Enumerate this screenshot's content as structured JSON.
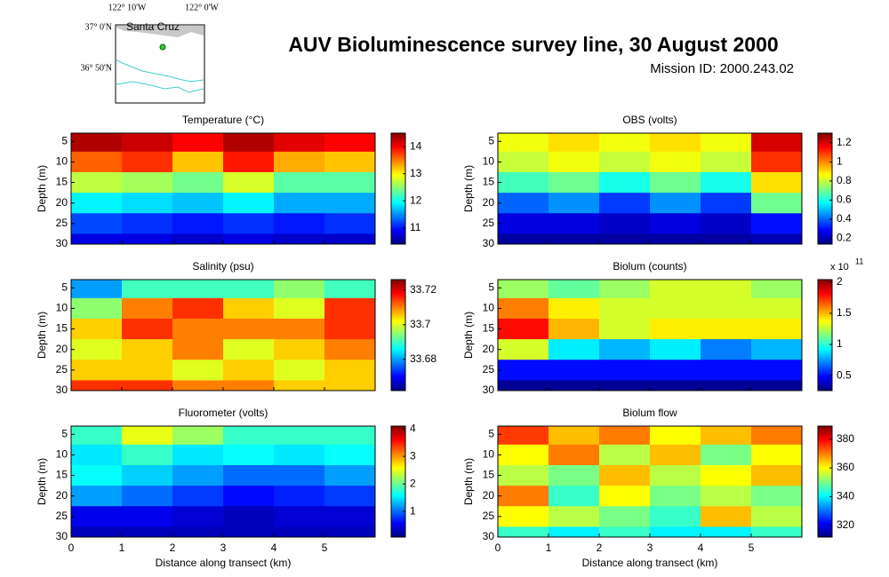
{
  "header": {
    "title": "AUV Bioluminescence survey line, 30 August 2000",
    "subtitle": "Mission ID: 2000.243.02"
  },
  "map": {
    "lon_labels": [
      "122° 10'W",
      "122° 0'W"
    ],
    "lat_labels": [
      "37° 0'N",
      "36° 50'N"
    ],
    "place": "Santa Cruz"
  },
  "chart_data": [
    {
      "type": "heatmap",
      "title": "Temperature (°C)",
      "ylabel": "Depth (m)",
      "x": [
        0.5,
        1.5,
        2.5,
        3.5,
        4.5,
        5.5
      ],
      "depths": [
        5,
        10,
        15,
        20,
        25,
        30
      ],
      "values": [
        [
          14.3,
          14.2,
          14.0,
          14.3,
          14.1,
          14.0
        ],
        [
          13.6,
          13.8,
          13.2,
          13.9,
          13.3,
          13.2
        ],
        [
          12.7,
          12.6,
          12.4,
          12.8,
          12.3,
          12.3
        ],
        [
          11.9,
          11.8,
          11.7,
          11.9,
          11.6,
          11.6
        ],
        [
          11.2,
          11.1,
          11.0,
          11.1,
          11.0,
          11.1
        ],
        [
          10.8,
          10.8,
          10.7,
          10.8,
          10.7,
          10.7
        ]
      ],
      "xlim": [
        0,
        6
      ],
      "xticks": [
        0,
        1,
        2,
        3,
        4,
        5
      ],
      "ylim": [
        3,
        30
      ],
      "yticks": [
        5,
        10,
        15,
        20,
        25,
        30
      ],
      "clim": [
        10.4,
        14.5
      ],
      "cticks": [
        11,
        12,
        13,
        14
      ],
      "colormap": "jet"
    },
    {
      "type": "heatmap",
      "title": "OBS (volts)",
      "ylabel": "Depth (m)",
      "x": [
        0.5,
        1.5,
        2.5,
        3.5,
        4.5,
        5.5
      ],
      "depths": [
        5,
        10,
        15,
        20,
        25,
        30
      ],
      "values": [
        [
          0.85,
          0.9,
          0.85,
          0.9,
          0.85,
          1.2
        ],
        [
          0.8,
          0.85,
          0.8,
          0.85,
          0.8,
          1.1
        ],
        [
          0.65,
          0.7,
          0.6,
          0.7,
          0.6,
          0.9
        ],
        [
          0.4,
          0.45,
          0.35,
          0.45,
          0.35,
          0.7
        ],
        [
          0.25,
          0.25,
          0.22,
          0.25,
          0.22,
          0.3
        ],
        [
          0.18,
          0.18,
          0.18,
          0.18,
          0.18,
          0.2
        ]
      ],
      "xlim": [
        0,
        6
      ],
      "xticks": [
        0,
        1,
        2,
        3,
        4,
        5
      ],
      "ylim": [
        3,
        30
      ],
      "yticks": [
        5,
        10,
        15,
        20,
        25,
        30
      ],
      "clim": [
        0.14,
        1.3
      ],
      "cticks": [
        0.2,
        0.4,
        0.6,
        0.8,
        1,
        1.2
      ],
      "colormap": "jet"
    },
    {
      "type": "heatmap",
      "title": "Salinity (psu)",
      "ylabel": "Depth (m)",
      "x": [
        0.5,
        1.5,
        2.5,
        3.5,
        4.5,
        5.5
      ],
      "depths": [
        5,
        10,
        15,
        20,
        25,
        30
      ],
      "values": [
        [
          33.68,
          33.69,
          33.69,
          33.69,
          33.695,
          33.69
        ],
        [
          33.695,
          33.71,
          33.715,
          33.705,
          33.7,
          33.715
        ],
        [
          33.705,
          33.715,
          33.71,
          33.71,
          33.71,
          33.715
        ],
        [
          33.7,
          33.705,
          33.71,
          33.7,
          33.705,
          33.71
        ],
        [
          33.705,
          33.705,
          33.7,
          33.705,
          33.7,
          33.705
        ],
        [
          33.715,
          33.715,
          33.71,
          33.71,
          33.705,
          33.705
        ]
      ],
      "xlim": [
        0,
        6
      ],
      "xticks": [
        0,
        1,
        2,
        3,
        4,
        5
      ],
      "ylim": [
        3,
        30
      ],
      "yticks": [
        5,
        10,
        15,
        20,
        25,
        30
      ],
      "clim": [
        33.662,
        33.726
      ],
      "cticks": [
        33.68,
        33.7,
        33.72
      ],
      "colormap": "jet"
    },
    {
      "type": "heatmap",
      "title": "Biolum (counts)",
      "ylabel": "Depth (m)",
      "x": [
        0.5,
        1.5,
        2.5,
        3.5,
        4.5,
        5.5
      ],
      "depths": [
        5,
        10,
        15,
        20,
        25,
        30
      ],
      "values": [
        [
          1.2,
          1.1,
          1.2,
          1.3,
          1.3,
          1.2
        ],
        [
          1.6,
          1.4,
          1.3,
          1.3,
          1.3,
          1.3
        ],
        [
          1.8,
          1.5,
          1.3,
          1.4,
          1.4,
          1.4
        ],
        [
          1.3,
          0.9,
          0.8,
          0.9,
          0.7,
          0.8
        ],
        [
          0.5,
          0.5,
          0.5,
          0.5,
          0.5,
          0.5
        ],
        [
          0.3,
          0.3,
          0.3,
          0.3,
          0.3,
          0.3
        ]
      ],
      "xlim": [
        0,
        6
      ],
      "xticks": [
        0,
        1,
        2,
        3,
        4,
        5
      ],
      "ylim": [
        3,
        30
      ],
      "yticks": [
        5,
        10,
        15,
        20,
        25,
        30
      ],
      "clim": [
        0.26,
        2.04
      ],
      "cticks": [
        0.5,
        1,
        1.5,
        2
      ],
      "colormap": "jet",
      "cbar_multiplier": "x 10",
      "cbar_exponent": "11"
    },
    {
      "type": "heatmap",
      "title": "Fluorometer (volts)",
      "ylabel": "Depth (m)",
      "xlabel": "Distance along transect (km)",
      "x": [
        0.5,
        1.5,
        2.5,
        3.5,
        4.5,
        5.5
      ],
      "depths": [
        5,
        10,
        15,
        20,
        25,
        30
      ],
      "values": [
        [
          1.8,
          2.5,
          2.2,
          1.8,
          1.8,
          1.8
        ],
        [
          1.5,
          1.8,
          1.5,
          1.6,
          1.5,
          1.6
        ],
        [
          1.6,
          1.4,
          1.2,
          1.0,
          1.0,
          1.2
        ],
        [
          1.2,
          1.0,
          0.8,
          0.6,
          0.7,
          0.8
        ],
        [
          0.5,
          0.5,
          0.4,
          0.3,
          0.4,
          0.4
        ],
        [
          0.3,
          0.3,
          0.3,
          0.3,
          0.3,
          0.3
        ]
      ],
      "xlim": [
        0,
        6
      ],
      "xticks": [
        0,
        1,
        2,
        3,
        4,
        5
      ],
      "ylim": [
        3,
        30
      ],
      "yticks": [
        5,
        10,
        15,
        20,
        25,
        30
      ],
      "clim": [
        0.07,
        4.1
      ],
      "cticks": [
        1,
        2,
        3,
        4
      ],
      "colormap": "jet"
    },
    {
      "type": "heatmap",
      "title": "Biolum flow",
      "ylabel": "Depth (m)",
      "xlabel": "Distance along transect (km)",
      "x": [
        0.5,
        1.5,
        2.5,
        3.5,
        4.5,
        5.5
      ],
      "depths": [
        5,
        10,
        15,
        20,
        25,
        30
      ],
      "values": [
        [
          375,
          365,
          370,
          360,
          365,
          370
        ],
        [
          360,
          370,
          355,
          365,
          350,
          360
        ],
        [
          355,
          350,
          365,
          355,
          360,
          365
        ],
        [
          370,
          345,
          360,
          350,
          355,
          350
        ],
        [
          360,
          355,
          350,
          345,
          365,
          355
        ],
        [
          345,
          340,
          345,
          340,
          340,
          345
        ]
      ],
      "xlim": [
        0,
        6
      ],
      "xticks": [
        0,
        1,
        2,
        3,
        4,
        5
      ],
      "ylim": [
        3,
        30
      ],
      "yticks": [
        5,
        10,
        15,
        20,
        25,
        30
      ],
      "clim": [
        312,
        389
      ],
      "cticks": [
        320,
        340,
        360,
        380
      ],
      "colormap": "jet"
    }
  ]
}
